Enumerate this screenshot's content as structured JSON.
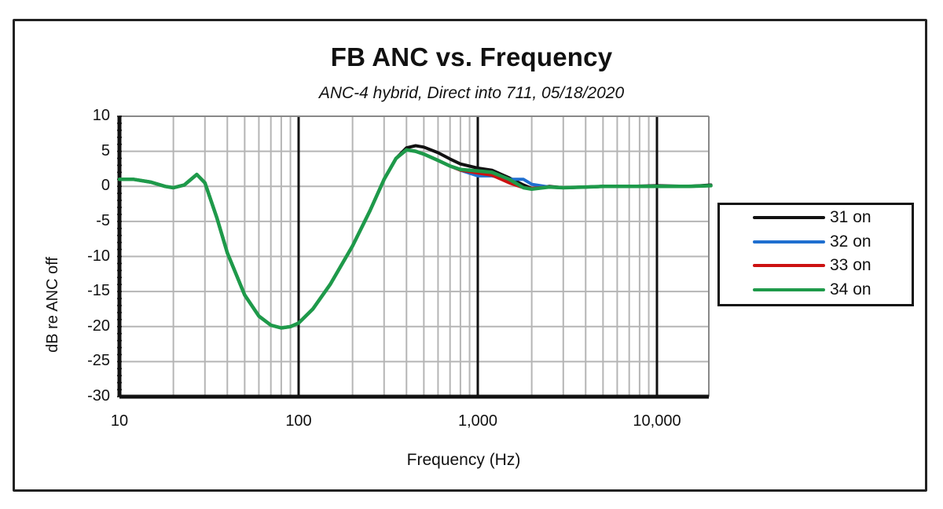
{
  "chart": {
    "title": "FB ANC vs. Frequency",
    "subtitle": "ANC-4 hybrid, Direct into 711, 05/18/2020",
    "xlabel": "Frequency (Hz)",
    "ylabel": "dB re ANC off",
    "x_ticks": [
      "10",
      "100",
      "1,000",
      "10,000"
    ],
    "y_ticks": [
      "10",
      "5",
      "0",
      "-5",
      "-10",
      "-15",
      "-20",
      "-25",
      "-30"
    ],
    "legend": [
      {
        "label": "31 on",
        "color": "#111111"
      },
      {
        "label": "32 on",
        "color": "#1f6fd0"
      },
      {
        "label": "33 on",
        "color": "#cc1111"
      },
      {
        "label": "34 on",
        "color": "#1e9a4a"
      }
    ]
  },
  "chart_data": {
    "type": "line",
    "title": "FB ANC vs. Frequency",
    "subtitle": "ANC-4 hybrid, Direct into 711, 05/18/2020",
    "xlabel": "Frequency (Hz)",
    "ylabel": "dB re ANC off",
    "xscale": "log",
    "xlim": [
      10,
      20000
    ],
    "ylim": [
      -30,
      10
    ],
    "x_tick_labels": [
      "10",
      "100",
      "1,000",
      "10,000"
    ],
    "y_tick_values": [
      10,
      5,
      0,
      -5,
      -10,
      -15,
      -20,
      -25,
      -30
    ],
    "grid": true,
    "legend_position": "right",
    "x": [
      10,
      12,
      15,
      18,
      20,
      23,
      27,
      30,
      35,
      40,
      50,
      60,
      70,
      80,
      90,
      100,
      120,
      150,
      200,
      250,
      300,
      350,
      400,
      450,
      500,
      600,
      700,
      800,
      1000,
      1200,
      1500,
      1800,
      2000,
      2500,
      3000,
      4000,
      5000,
      7000,
      10000,
      15000,
      20000
    ],
    "series": [
      {
        "name": "31 on",
        "color": "#111111",
        "values": [
          1.0,
          1.0,
          0.6,
          0.0,
          -0.2,
          0.2,
          1.7,
          0.5,
          -4.5,
          -9.5,
          -15.5,
          -18.5,
          -19.8,
          -20.2,
          -20.0,
          -19.5,
          -17.5,
          -14.0,
          -8.5,
          -3.5,
          1.0,
          4.0,
          5.5,
          5.8,
          5.6,
          4.8,
          3.9,
          3.2,
          2.6,
          2.3,
          1.2,
          0.2,
          -0.3,
          0.0,
          -0.2,
          -0.1,
          0.0,
          0.0,
          0.1,
          0.0,
          0.2
        ]
      },
      {
        "name": "32 on",
        "color": "#1f6fd0",
        "values": [
          1.0,
          1.0,
          0.6,
          0.0,
          -0.2,
          0.2,
          1.7,
          0.5,
          -4.5,
          -9.5,
          -15.5,
          -18.5,
          -19.8,
          -20.2,
          -20.0,
          -19.5,
          -17.5,
          -14.0,
          -8.5,
          -3.5,
          1.0,
          4.0,
          5.2,
          5.0,
          4.6,
          3.7,
          2.9,
          2.3,
          1.5,
          1.5,
          1.0,
          1.0,
          0.3,
          -0.1,
          -0.2,
          -0.1,
          0.0,
          0.0,
          0.0,
          0.0,
          0.1
        ]
      },
      {
        "name": "33 on",
        "color": "#cc1111",
        "values": [
          1.0,
          1.0,
          0.6,
          0.0,
          -0.2,
          0.2,
          1.7,
          0.5,
          -4.5,
          -9.5,
          -15.5,
          -18.5,
          -19.8,
          -20.2,
          -20.0,
          -19.5,
          -17.5,
          -14.0,
          -8.5,
          -3.5,
          1.0,
          4.0,
          5.2,
          5.0,
          4.6,
          3.7,
          2.9,
          2.3,
          1.9,
          1.6,
          0.5,
          -0.2,
          -0.3,
          -0.1,
          -0.2,
          -0.1,
          0.0,
          0.0,
          0.0,
          0.0,
          0.1
        ]
      },
      {
        "name": "34 on",
        "color": "#1e9a4a",
        "values": [
          1.0,
          1.0,
          0.6,
          0.0,
          -0.2,
          0.2,
          1.7,
          0.5,
          -4.5,
          -9.5,
          -15.5,
          -18.5,
          -19.8,
          -20.2,
          -20.0,
          -19.5,
          -17.5,
          -14.0,
          -8.5,
          -3.5,
          1.0,
          4.0,
          5.2,
          5.0,
          4.6,
          3.7,
          2.9,
          2.4,
          2.2,
          2.0,
          1.0,
          -0.2,
          -0.4,
          -0.1,
          -0.2,
          -0.1,
          0.0,
          0.0,
          0.0,
          0.0,
          0.1
        ]
      }
    ]
  }
}
